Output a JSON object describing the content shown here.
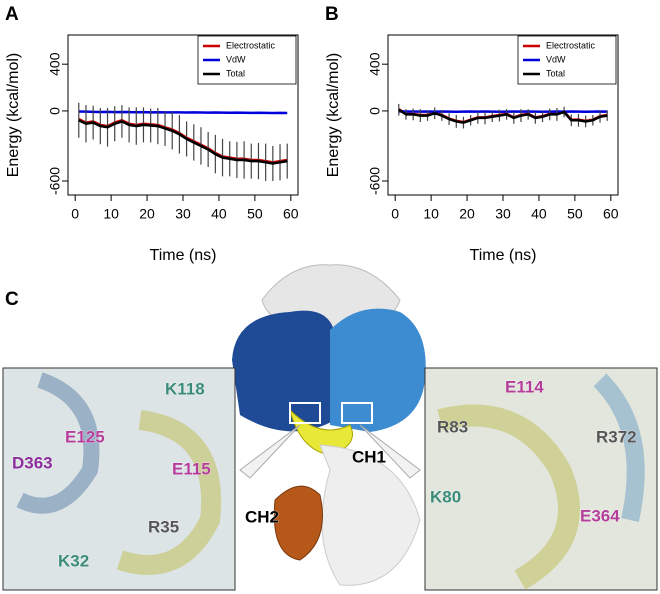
{
  "chart_data": [
    {
      "type": "line",
      "panel": "A",
      "y_label": "Energy (kcal/mol)",
      "x_label": "Time (ns)",
      "x": [
        1,
        3,
        5,
        7,
        9,
        11,
        13,
        15,
        17,
        19,
        21,
        23,
        25,
        27,
        29,
        31,
        33,
        35,
        37,
        39,
        41,
        43,
        45,
        47,
        49,
        51,
        53,
        55,
        57,
        59
      ],
      "xlim": [
        -2,
        62
      ],
      "xticks": [
        0,
        10,
        20,
        30,
        40,
        50,
        60
      ],
      "ylim": [
        -720,
        650
      ],
      "yticks": [
        -600,
        0,
        400
      ],
      "legend": "upper right",
      "series": [
        {
          "name": "Electrostatic",
          "color": "#cc0000",
          "values": [
            -70,
            -100,
            -90,
            -120,
            -130,
            -100,
            -80,
            -110,
            -120,
            -110,
            -115,
            -120,
            -140,
            -160,
            -190,
            -230,
            -260,
            -290,
            -320,
            -360,
            -390,
            -400,
            -410,
            -410,
            -420,
            -420,
            -430,
            -440,
            -430,
            -420
          ]
        },
        {
          "name": "VdW",
          "color": "#0000dd",
          "values": [
            -5,
            -6,
            -8,
            -9,
            -8,
            -10,
            -9,
            -10,
            -11,
            -10,
            -12,
            -11,
            -12,
            -13,
            -12,
            -14,
            -13,
            -14,
            -15,
            -14,
            -15,
            -16,
            -15,
            -16,
            -17,
            -16,
            -17,
            -18,
            -17,
            -18
          ]
        },
        {
          "name": "Total",
          "color": "#000000",
          "values": [
            -80,
            -110,
            -100,
            -130,
            -140,
            -110,
            -90,
            -120,
            -130,
            -120,
            -125,
            -130,
            -150,
            -170,
            -200,
            -240,
            -270,
            -300,
            -330,
            -370,
            -400,
            -410,
            -420,
            -420,
            -430,
            -430,
            -440,
            -450,
            -440,
            -430
          ],
          "errors": [
            150,
            160,
            145,
            155,
            165,
            150,
            140,
            150,
            160,
            150,
            145,
            155,
            150,
            160,
            165,
            150,
            155,
            160,
            150,
            165,
            160,
            150,
            155,
            160,
            150,
            155,
            160,
            150,
            155,
            150
          ]
        }
      ]
    },
    {
      "type": "line",
      "panel": "B",
      "y_label": "Energy (kcal/mol)",
      "x_label": "Time (ns)",
      "x": [
        1,
        3,
        5,
        7,
        9,
        11,
        13,
        15,
        17,
        19,
        21,
        23,
        25,
        27,
        29,
        31,
        33,
        35,
        37,
        39,
        41,
        43,
        45,
        47,
        49,
        51,
        53,
        55,
        57,
        59
      ],
      "xlim": [
        -2,
        62
      ],
      "xticks": [
        0,
        10,
        20,
        30,
        40,
        50,
        60
      ],
      "ylim": [
        -720,
        650
      ],
      "yticks": [
        -600,
        0,
        400
      ],
      "legend": "upper right",
      "series": [
        {
          "name": "Electrostatic",
          "color": "#cc0000",
          "values": [
            15,
            -25,
            -25,
            -35,
            -35,
            -15,
            -35,
            -65,
            -85,
            -95,
            -75,
            -55,
            -55,
            -45,
            -35,
            -25,
            -55,
            -35,
            -25,
            -55,
            -45,
            -25,
            -25,
            -5,
            -75,
            -75,
            -85,
            -75,
            -45,
            -35
          ]
        },
        {
          "name": "VdW",
          "color": "#0000dd",
          "values": [
            -4,
            -5,
            -5,
            -6,
            -5,
            -6,
            -5,
            -6,
            -7,
            -6,
            -5,
            -6,
            -5,
            -6,
            -7,
            -6,
            -5,
            -6,
            -5,
            -6,
            -7,
            -6,
            -5,
            -6,
            -5,
            -6,
            -7,
            -6,
            -5,
            -6
          ]
        },
        {
          "name": "Total",
          "color": "#000000",
          "values": [
            10,
            -30,
            -30,
            -40,
            -40,
            -20,
            -40,
            -70,
            -90,
            -100,
            -80,
            -60,
            -60,
            -50,
            -40,
            -30,
            -60,
            -40,
            -30,
            -60,
            -50,
            -30,
            -30,
            -10,
            -80,
            -80,
            -90,
            -80,
            -50,
            -40
          ],
          "errors": [
            50,
            45,
            50,
            55,
            45,
            50,
            45,
            50,
            55,
            50,
            45,
            50,
            55,
            45,
            50,
            45,
            50,
            55,
            45,
            50,
            45,
            50,
            55,
            45,
            50,
            55,
            50,
            45,
            50,
            45
          ]
        }
      ]
    }
  ],
  "panel_c": {
    "panel": "C",
    "left_labels": [
      "K118",
      "E125",
      "E115",
      "D363",
      "R35",
      "K32"
    ],
    "right_labels": [
      "E114",
      "R83",
      "R372",
      "K80",
      "E364"
    ],
    "center_labels": [
      "CH1",
      "CH2"
    ]
  }
}
